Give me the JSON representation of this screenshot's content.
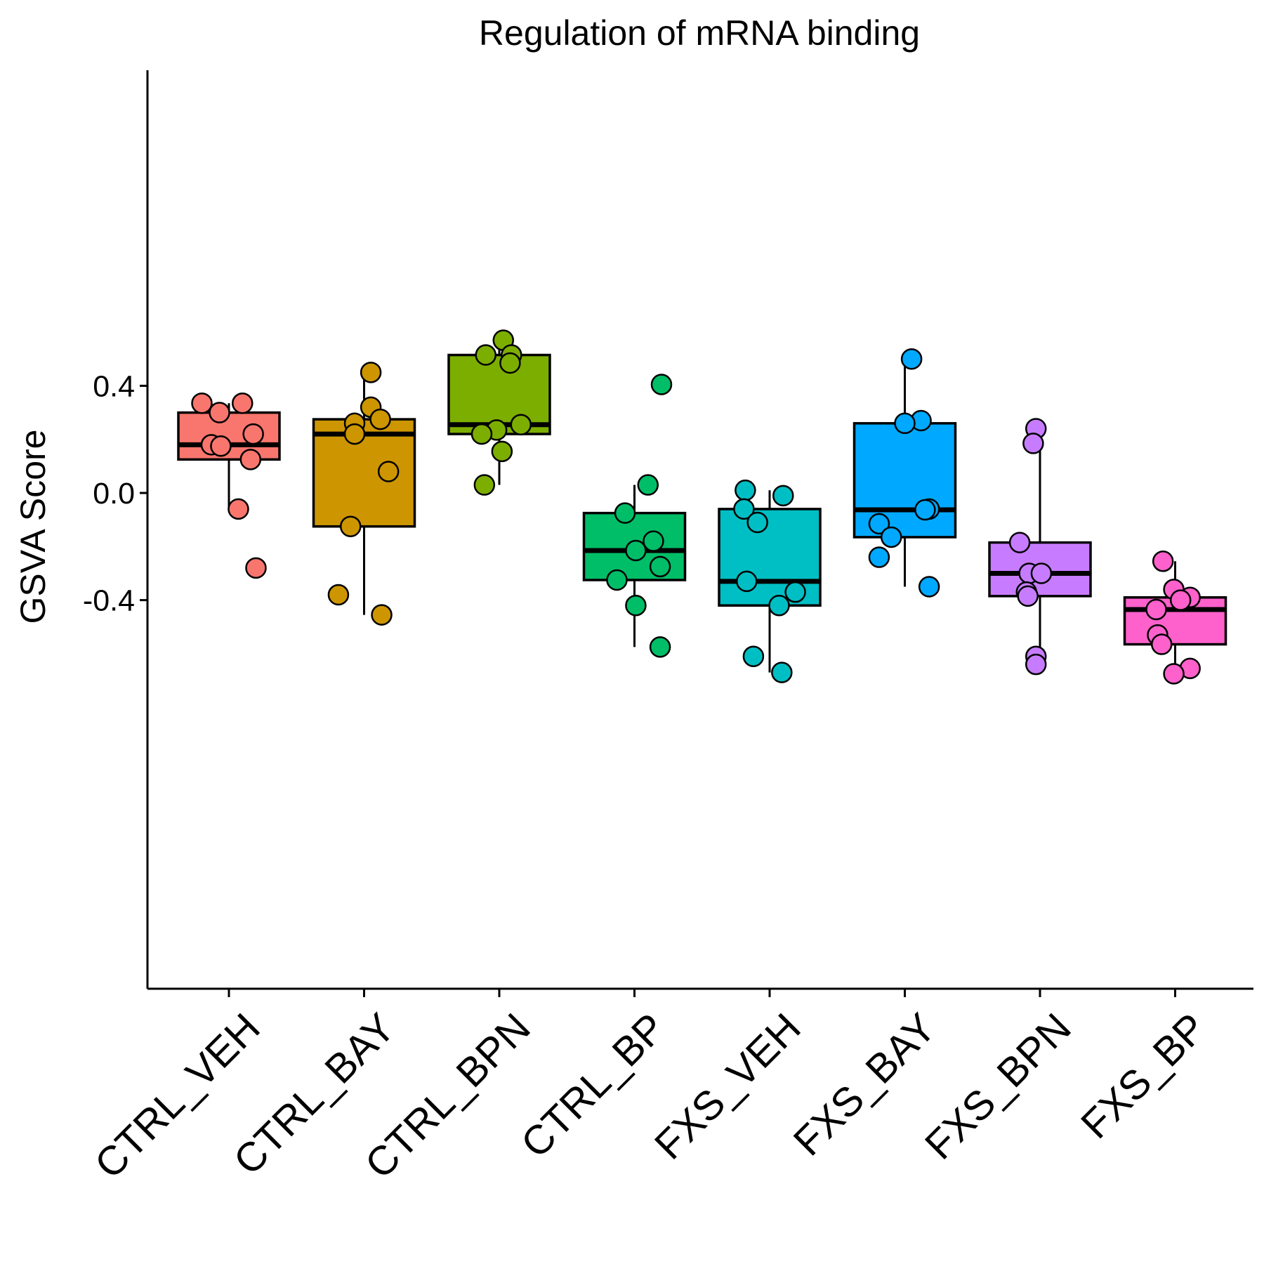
{
  "chart_data": {
    "type": "box",
    "title": "Regulation of mRNA binding",
    "xlabel": "",
    "ylabel": "GSVA Score",
    "ylim": [
      -0.74,
      0.63
    ],
    "yticks": [
      0.4,
      0.0,
      -0.4
    ],
    "ytick_labels": [
      "0.4",
      "0.0",
      "-0.4"
    ],
    "grid": false,
    "legend": "none",
    "categories": [
      "CTRL_VEH",
      "CTRL_BAY",
      "CTRL_BPN",
      "CTRL_BP",
      "FXS_VEH",
      "FXS_BAY",
      "FXS_BPN",
      "FXS_BP"
    ],
    "colors": [
      "#F8766D",
      "#CD9600",
      "#7CAE00",
      "#00BE67",
      "#00BFC4",
      "#00A9FF",
      "#C77CFF",
      "#FF61CC"
    ],
    "boxes": [
      {
        "q1": 0.125,
        "median": 0.18,
        "q3": 0.3,
        "whisker_low": -0.06,
        "whisker_high": 0.335
      },
      {
        "q1": -0.125,
        "median": 0.22,
        "q3": 0.275,
        "whisker_low": -0.455,
        "whisker_high": 0.45
      },
      {
        "q1": 0.22,
        "median": 0.255,
        "q3": 0.515,
        "whisker_low": 0.03,
        "whisker_high": 0.57
      },
      {
        "q1": -0.325,
        "median": -0.215,
        "q3": -0.075,
        "whisker_low": -0.575,
        "whisker_high": 0.03
      },
      {
        "q1": -0.42,
        "median": -0.33,
        "q3": -0.06,
        "whisker_low": -0.67,
        "whisker_high": 0.01
      },
      {
        "q1": -0.165,
        "median": -0.063,
        "q3": 0.26,
        "whisker_low": -0.35,
        "whisker_high": 0.5
      },
      {
        "q1": -0.385,
        "median": -0.3,
        "q3": -0.185,
        "whisker_low": -0.64,
        "whisker_high": 0.245
      },
      {
        "q1": -0.565,
        "median": -0.435,
        "q3": -0.39,
        "whisker_low": -0.67,
        "whisker_high": -0.255
      }
    ],
    "points": [
      [
        {
          "x": -0.2,
          "y": 0.335
        },
        {
          "x": 0.1,
          "y": 0.335
        },
        {
          "x": -0.07,
          "y": 0.3
        },
        {
          "x": 0.18,
          "y": 0.22
        },
        {
          "x": -0.13,
          "y": 0.18
        },
        {
          "x": -0.06,
          "y": 0.175
        },
        {
          "x": 0.16,
          "y": 0.125
        },
        {
          "x": 0.07,
          "y": -0.06
        },
        {
          "x": 0.2,
          "y": -0.28
        }
      ],
      [
        {
          "x": 0.05,
          "y": 0.45
        },
        {
          "x": 0.05,
          "y": 0.32
        },
        {
          "x": 0.12,
          "y": 0.275
        },
        {
          "x": -0.07,
          "y": 0.26
        },
        {
          "x": -0.07,
          "y": 0.22
        },
        {
          "x": 0.18,
          "y": 0.08
        },
        {
          "x": -0.1,
          "y": -0.125
        },
        {
          "x": -0.19,
          "y": -0.38
        },
        {
          "x": 0.13,
          "y": -0.455
        }
      ],
      [
        {
          "x": 0.03,
          "y": 0.57
        },
        {
          "x": -0.1,
          "y": 0.515
        },
        {
          "x": 0.09,
          "y": 0.515
        },
        {
          "x": 0.08,
          "y": 0.485
        },
        {
          "x": 0.16,
          "y": 0.255
        },
        {
          "x": -0.02,
          "y": 0.235
        },
        {
          "x": -0.13,
          "y": 0.22
        },
        {
          "x": 0.02,
          "y": 0.155
        },
        {
          "x": -0.11,
          "y": 0.03
        }
      ],
      [
        {
          "x": 0.2,
          "y": 0.405
        },
        {
          "x": 0.1,
          "y": 0.03
        },
        {
          "x": -0.07,
          "y": -0.075
        },
        {
          "x": 0.14,
          "y": -0.18
        },
        {
          "x": 0.01,
          "y": -0.215
        },
        {
          "x": 0.19,
          "y": -0.275
        },
        {
          "x": -0.13,
          "y": -0.325
        },
        {
          "x": 0.01,
          "y": -0.42
        },
        {
          "x": 0.19,
          "y": -0.575
        }
      ],
      [
        {
          "x": -0.18,
          "y": 0.01
        },
        {
          "x": 0.1,
          "y": -0.01
        },
        {
          "x": -0.19,
          "y": -0.06
        },
        {
          "x": -0.09,
          "y": -0.11
        },
        {
          "x": -0.17,
          "y": -0.33
        },
        {
          "x": 0.19,
          "y": -0.37
        },
        {
          "x": 0.07,
          "y": -0.42
        },
        {
          "x": -0.12,
          "y": -0.61
        },
        {
          "x": 0.09,
          "y": -0.67
        }
      ],
      [
        {
          "x": 0.05,
          "y": 0.5
        },
        {
          "x": 0.12,
          "y": 0.27
        },
        {
          "x": 0.0,
          "y": 0.26
        },
        {
          "x": 0.18,
          "y": -0.06
        },
        {
          "x": 0.15,
          "y": -0.063
        },
        {
          "x": -0.19,
          "y": -0.115
        },
        {
          "x": -0.1,
          "y": -0.165
        },
        {
          "x": -0.19,
          "y": -0.24
        },
        {
          "x": 0.18,
          "y": -0.35
        }
      ],
      [
        {
          "x": -0.03,
          "y": 0.24
        },
        {
          "x": -0.05,
          "y": 0.185
        },
        {
          "x": -0.15,
          "y": -0.185
        },
        {
          "x": -0.08,
          "y": -0.3
        },
        {
          "x": 0.01,
          "y": -0.3
        },
        {
          "x": -0.1,
          "y": -0.37
        },
        {
          "x": -0.09,
          "y": -0.385
        },
        {
          "x": -0.03,
          "y": -0.61
        },
        {
          "x": -0.03,
          "y": -0.64
        }
      ],
      [
        {
          "x": -0.09,
          "y": -0.255
        },
        {
          "x": -0.01,
          "y": -0.36
        },
        {
          "x": 0.11,
          "y": -0.39
        },
        {
          "x": 0.04,
          "y": -0.4
        },
        {
          "x": -0.14,
          "y": -0.435
        },
        {
          "x": -0.13,
          "y": -0.53
        },
        {
          "x": -0.1,
          "y": -0.565
        },
        {
          "x": 0.11,
          "y": -0.655
        },
        {
          "x": -0.01,
          "y": -0.675
        }
      ]
    ]
  }
}
